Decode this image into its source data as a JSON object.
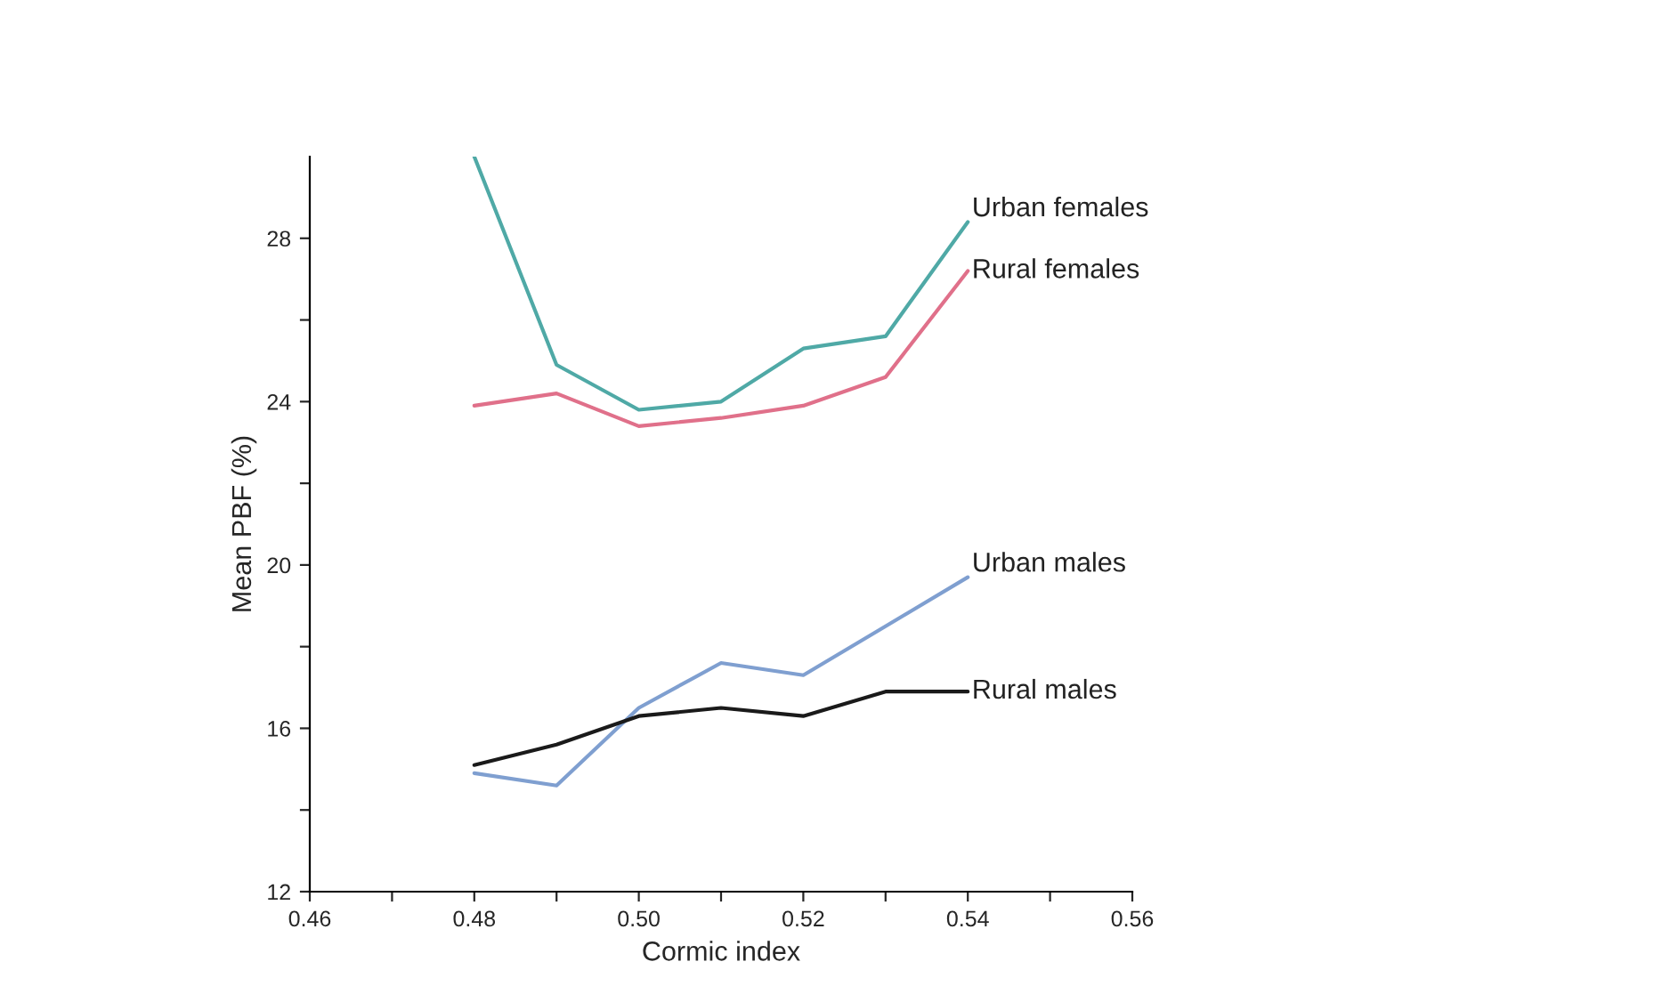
{
  "chart_data": {
    "type": "line",
    "xlabel": "Cormic index",
    "ylabel": "Mean PBF (%)",
    "x": [
      0.48,
      0.49,
      0.5,
      0.51,
      0.52,
      0.53,
      0.54
    ],
    "series": [
      {
        "name": "Urban females",
        "color": "#4fa9a6",
        "values": [
          30.0,
          24.9,
          23.8,
          24.0,
          25.3,
          25.6,
          28.4
        ]
      },
      {
        "name": "Rural females",
        "color": "#e0708a",
        "values": [
          23.9,
          24.2,
          23.4,
          23.6,
          23.9,
          24.6,
          27.2
        ]
      },
      {
        "name": "Urban males",
        "color": "#7f9fd0",
        "values": [
          14.9,
          14.6,
          16.5,
          17.6,
          17.3,
          18.5,
          19.7
        ]
      },
      {
        "name": "Rural males",
        "color": "#1a1a1a",
        "values": [
          15.1,
          15.6,
          16.3,
          16.5,
          16.3,
          16.9,
          16.9
        ]
      }
    ],
    "xlim": [
      0.46,
      0.56
    ],
    "xticks": [
      0.46,
      {
        "value": 0.47,
        "label": null
      },
      0.48,
      {
        "value": 0.49,
        "label": null
      },
      "0.50",
      {
        "value": 0.51,
        "label": null
      },
      0.52,
      {
        "value": 0.53,
        "label": null
      },
      0.54,
      {
        "value": 0.55,
        "label": null
      },
      0.56
    ],
    "ylim": [
      12,
      30
    ],
    "yticks": [
      12,
      {
        "value": 14,
        "label": null
      },
      16,
      {
        "value": 18,
        "label": null
      },
      20,
      {
        "value": 22,
        "label": null
      },
      24,
      {
        "value": 26,
        "label": null
      },
      28
    ],
    "grid": false,
    "legend": false,
    "marker": "none",
    "line_style": "solid"
  }
}
